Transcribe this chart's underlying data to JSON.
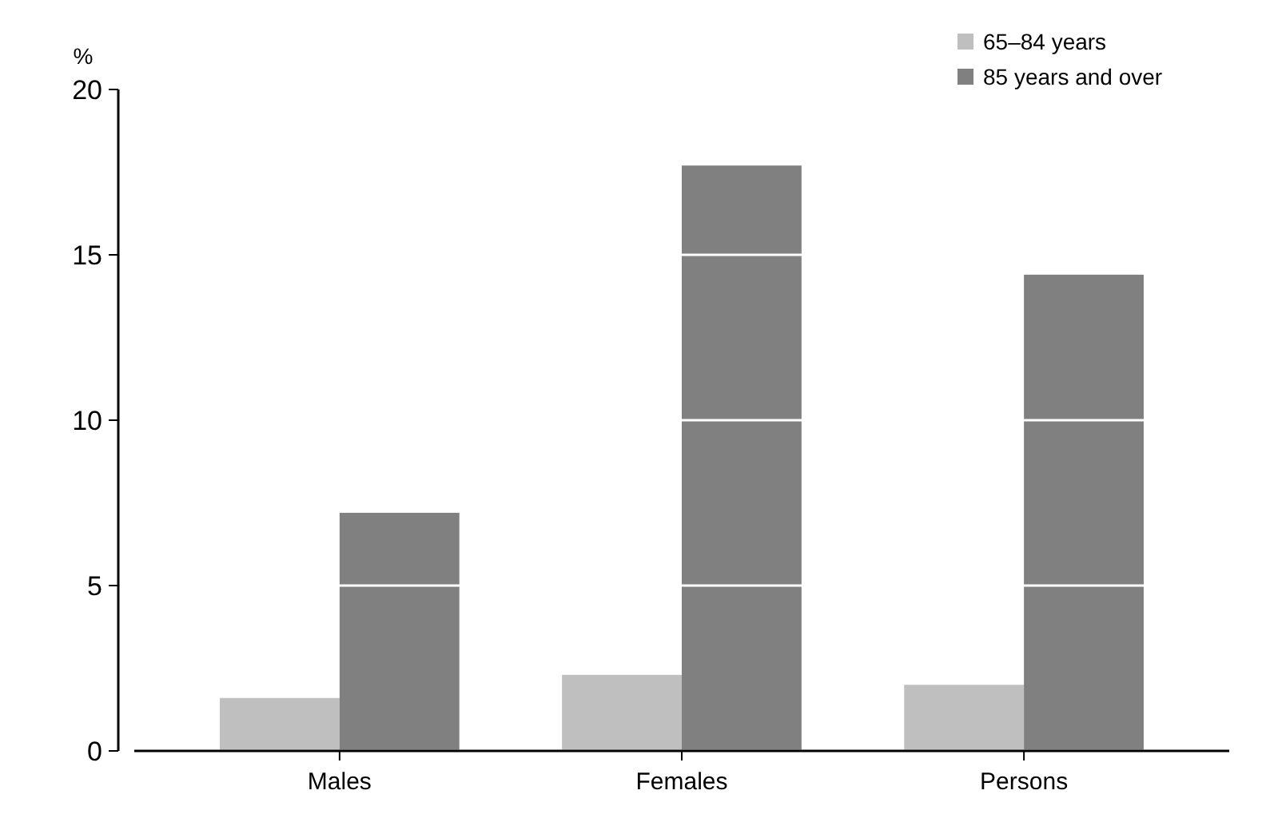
{
  "chart_data": {
    "type": "bar",
    "ylabel": "%",
    "categories": [
      "Males",
      "Females",
      "Persons"
    ],
    "series": [
      {
        "name": "65–84 years",
        "color": "#bfbfbf",
        "values": [
          1.6,
          2.3,
          2.0
        ]
      },
      {
        "name": "85 years and over",
        "color": "#808080",
        "values": [
          7.2,
          17.7,
          14.4
        ]
      }
    ],
    "ylim": [
      0,
      20
    ],
    "yticks": [
      0,
      5,
      10,
      15,
      20
    ],
    "grid": "y",
    "legend": "top right"
  }
}
